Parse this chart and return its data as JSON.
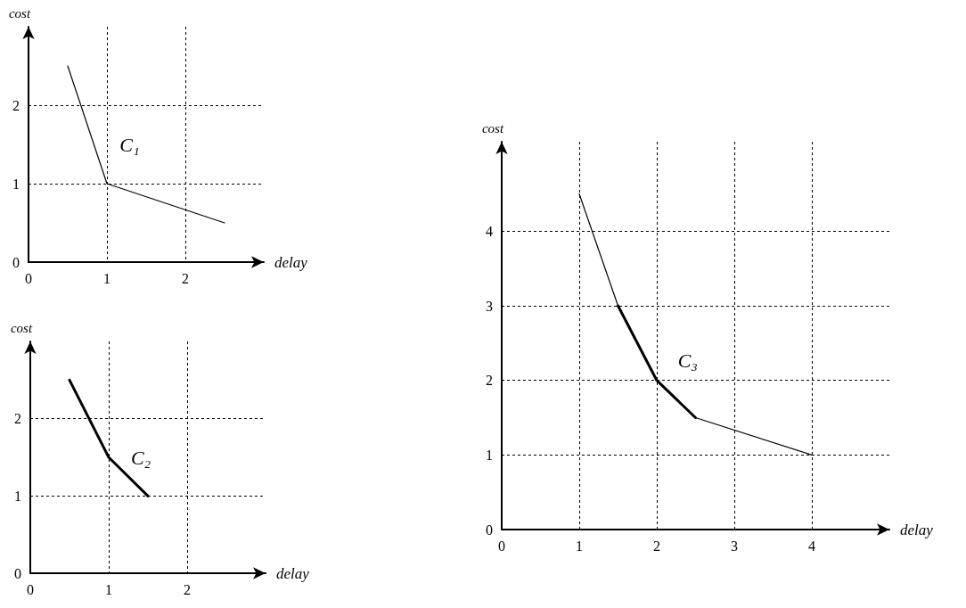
{
  "chart_data": [
    {
      "type": "line",
      "xlabel": "delay",
      "ylabel": "cost",
      "xlim": [
        0,
        3
      ],
      "ylim": [
        0,
        3
      ],
      "xticks": [
        0,
        1,
        2
      ],
      "yticks": [
        0,
        1,
        2
      ],
      "grid": true,
      "marker": "none",
      "line_style": "solid",
      "series": [
        {
          "color": "#000000",
          "x": [
            0.5,
            1,
            2.5
          ],
          "values": [
            2.5,
            1,
            0.5
          ]
        }
      ],
      "annotations": [
        "C₁"
      ]
    },
    {
      "type": "line",
      "xlabel": "delay",
      "ylabel": "cost",
      "xlim": [
        0,
        3
      ],
      "ylim": [
        0,
        3
      ],
      "xticks": [
        0,
        1,
        2
      ],
      "yticks": [
        0,
        1,
        2
      ],
      "grid": true,
      "marker": "none",
      "line_style": "solid",
      "series": [
        {
          "color": "#000000",
          "x": [
            0.5,
            1,
            1.5
          ],
          "values": [
            2.5,
            1.5,
            1
          ]
        }
      ],
      "annotations": [
        "C₂"
      ]
    },
    {
      "type": "line",
      "xlabel": "delay",
      "ylabel": "cost",
      "xlim": [
        0,
        5
      ],
      "ylim": [
        0,
        5.2
      ],
      "xticks": [
        0,
        1,
        2,
        3,
        4
      ],
      "yticks": [
        0,
        1,
        2,
        3,
        4
      ],
      "grid": true,
      "marker": "none",
      "line_style": "solid",
      "series": [
        {
          "color": "#000000",
          "x": [
            1,
            1.5
          ],
          "values": [
            4.5,
            3
          ]
        },
        {
          "color": "#000000",
          "x": [
            1.5,
            2,
            2.5
          ],
          "values": [
            3,
            2,
            1.5
          ]
        },
        {
          "color": "#000000",
          "x": [
            2.5,
            4
          ],
          "values": [
            1.5,
            1
          ]
        }
      ],
      "annotations": [
        "C₃"
      ]
    }
  ]
}
